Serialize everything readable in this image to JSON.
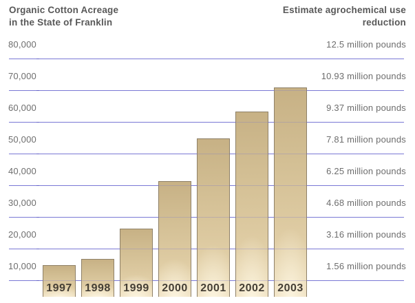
{
  "header": {
    "left_title_line1": "Organic Cotton Acreage",
    "left_title_line2": "in the State of Franklin",
    "right_title_line1": "Estimate agrochemical use",
    "right_title_line2": "reduction"
  },
  "chart_data": {
    "type": "bar",
    "title": "Organic Cotton Acreage in the State of Franklin",
    "secondary_title": "Estimate agrochemical use reduction",
    "categories": [
      "1997",
      "1998",
      "1999",
      "2000",
      "2001",
      "2002",
      "2003"
    ],
    "values": [
      10000,
      12000,
      21500,
      36500,
      50000,
      58500,
      66000
    ],
    "ylim": [
      0,
      84000
    ],
    "grid": true,
    "legend": false,
    "y_axis": {
      "tick_values": [
        80000,
        70000,
        60000,
        50000,
        40000,
        30000,
        20000,
        10000
      ],
      "tick_labels": [
        "80,000",
        "70,000",
        "60,000",
        "50,000",
        "40,000",
        "30,000",
        "20,000",
        "10,000"
      ]
    },
    "right_axis": {
      "tick_labels": [
        "12.5 million pounds",
        "10.93 million pounds",
        "9.37 million pounds",
        "7.81 million pounds",
        "6.25 million pounds",
        "4.68 million pounds",
        "3.16 million pounds",
        "1.56 million pounds"
      ]
    },
    "layout_hints": {
      "year_labels": "inside bar bottoms",
      "gridlines": "horizontal, drawn 20px below each tick label, faintly visible through bars",
      "legend_position": "none"
    }
  },
  "colors": {
    "gridline": "#7878dc",
    "gridline_over_bar": "rgba(125,120,200,0.32)",
    "bar_border": "#8e8067",
    "bar_top": "#c7b185",
    "bar_mid": "#d2be93",
    "bar_bottom": "#ead9b6",
    "bar_glow": "#fdf6e2",
    "axis_text": "#6d6d6d",
    "title_text": "#585858",
    "year_text": "#453f35"
  }
}
